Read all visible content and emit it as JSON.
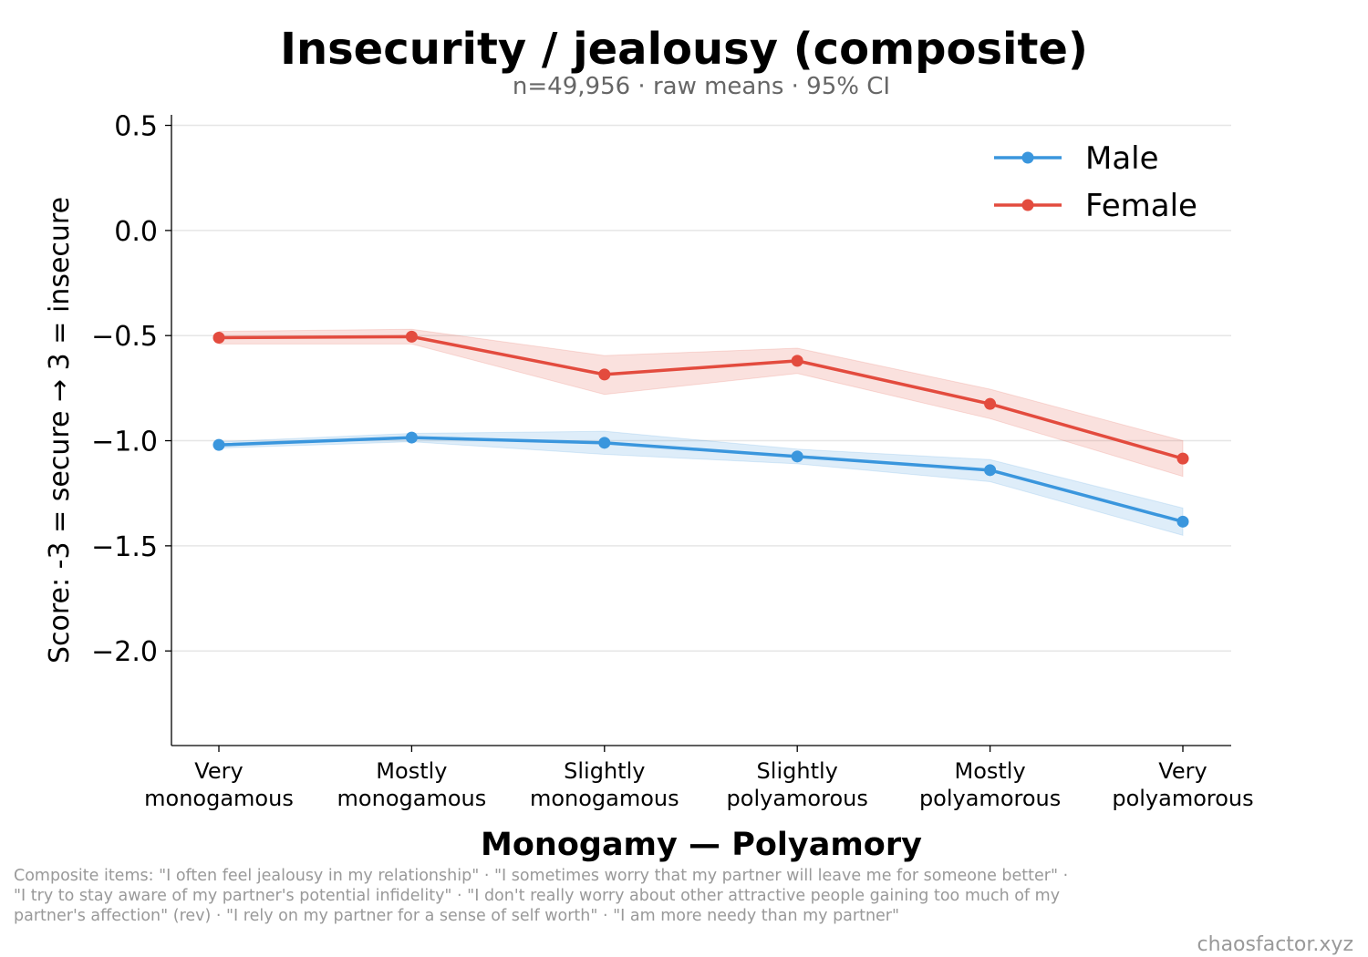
{
  "chart_data": {
    "type": "line",
    "title": "Insecurity / jealousy (composite)",
    "subtitle": "n=49,956 · raw means · 95% CI",
    "xlabel": "Monogamy — Polyamory",
    "ylabel": "Score: -3 = secure → 3 = insecure",
    "categories": [
      [
        "Very",
        "monogamous"
      ],
      [
        "Mostly",
        "monogamous"
      ],
      [
        "Slightly",
        "monogamous"
      ],
      [
        "Slightly",
        "polyamorous"
      ],
      [
        "Mostly",
        "polyamorous"
      ],
      [
        "Very",
        "polyamorous"
      ]
    ],
    "ylim": [
      -2.45,
      0.55
    ],
    "yticks": [
      0.5,
      0.0,
      -0.5,
      -1.0,
      -1.5,
      -2.0
    ],
    "ytick_labels": [
      "0.5",
      "0.0",
      "−0.5",
      "−1.0",
      "−1.5",
      "−2.0"
    ],
    "grid": "horizontal",
    "legend_position": "top-right",
    "series": [
      {
        "name": "Male",
        "color": "#3a96dd",
        "values": [
          -1.02,
          -0.985,
          -1.01,
          -1.075,
          -1.14,
          -1.385
        ],
        "ci_low": [
          -1.035,
          -1.005,
          -1.065,
          -1.11,
          -1.195,
          -1.45
        ],
        "ci_high": [
          -1.005,
          -0.965,
          -0.955,
          -1.04,
          -1.09,
          -1.32
        ]
      },
      {
        "name": "Female",
        "color": "#e34b3e",
        "values": [
          -0.51,
          -0.505,
          -0.685,
          -0.62,
          -0.825,
          -1.085
        ],
        "ci_low": [
          -0.54,
          -0.54,
          -0.78,
          -0.68,
          -0.895,
          -1.17
        ],
        "ci_high": [
          -0.48,
          -0.47,
          -0.595,
          -0.56,
          -0.755,
          -1.0
        ]
      }
    ]
  },
  "footnote": "Composite items: \"I often feel jealousy in my relationship\" · \"I sometimes worry that my partner will leave me for someone better\" · \"I try to stay aware of my partner's potential infidelity\" · \"I don't really worry about other attractive people gaining too much of my partner's affection\" (rev) · \"I rely on my partner for a sense of self worth\" · \"I am more needy than my partner\"",
  "credit": "chaosfactor.xyz"
}
